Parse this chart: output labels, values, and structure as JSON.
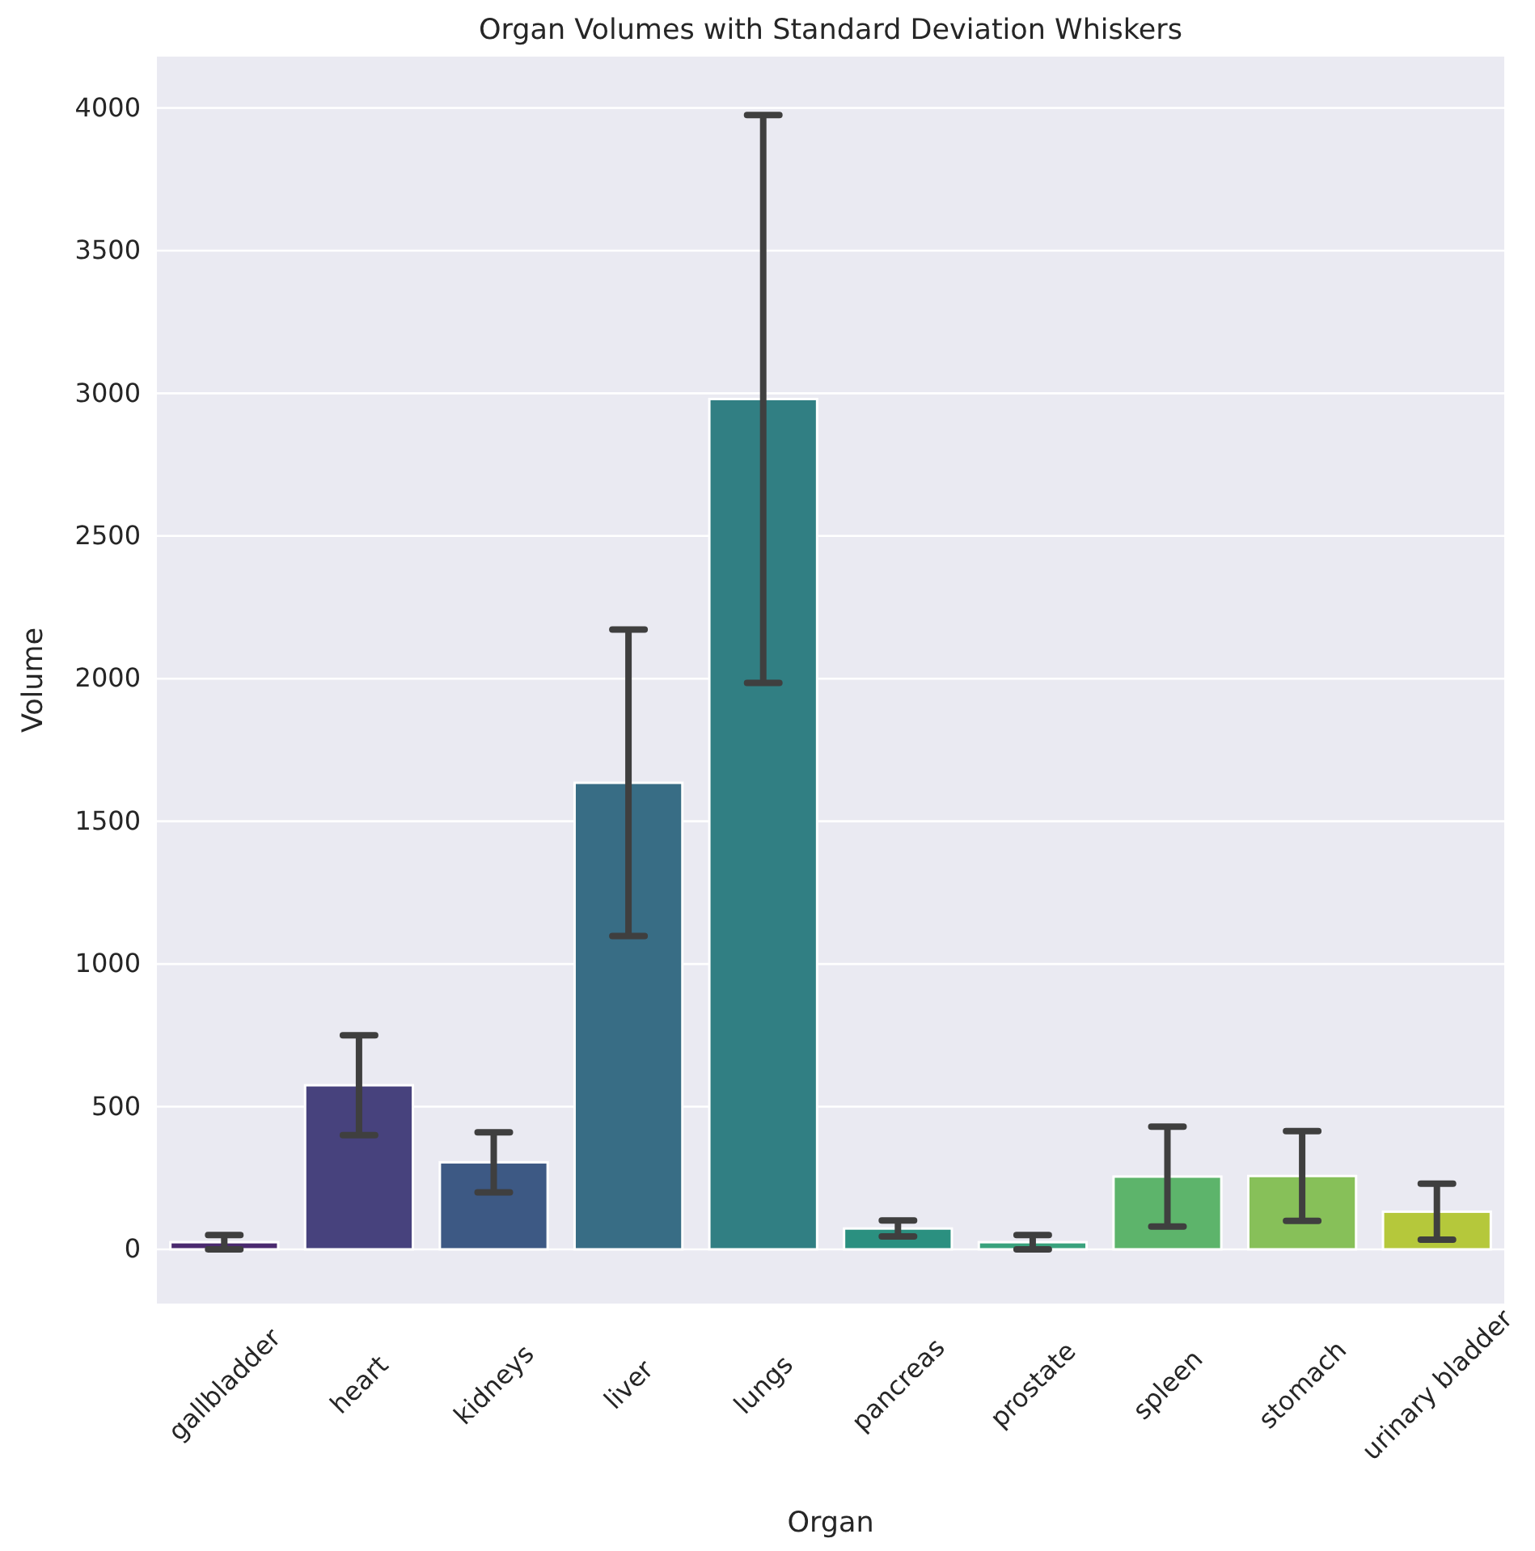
{
  "chart_data": {
    "type": "bar",
    "title": "Organ Volumes with Standard Deviation Whiskers",
    "xlabel": "Organ",
    "ylabel": "Volume",
    "categories": [
      "gallbladder",
      "heart",
      "kidneys",
      "liver",
      "lungs",
      "pancreas",
      "prostate",
      "spleen",
      "stomach",
      "urinary bladder"
    ],
    "values": [
      25,
      575,
      305,
      1635,
      2980,
      73,
      25,
      255,
      257,
      132
    ],
    "errors": [
      25,
      175,
      105,
      537,
      995,
      28,
      25,
      175,
      157,
      98
    ],
    "colors": [
      "#4b2a6f",
      "#47427d",
      "#3d5984",
      "#386d85",
      "#317f83",
      "#2b9080",
      "#39a27d",
      "#5db46b",
      "#87c059",
      "#b5c83b"
    ],
    "ylim": [
      -190,
      4180
    ],
    "yticks": [
      0,
      500,
      1000,
      1500,
      2000,
      2500,
      3000,
      3500,
      4000
    ],
    "grid": "y"
  }
}
